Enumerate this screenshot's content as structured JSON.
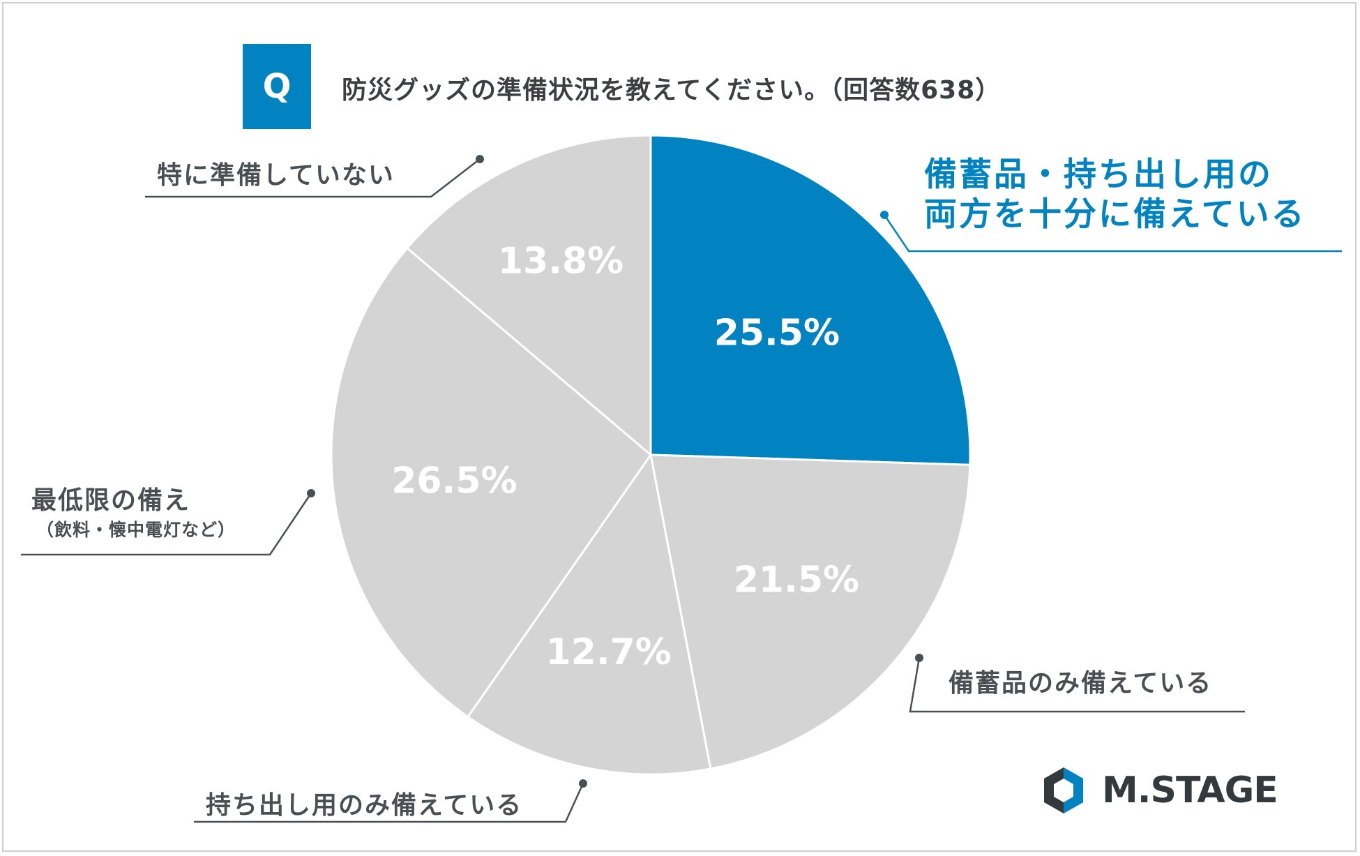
{
  "question": {
    "badge": "Q",
    "text": "防災グッズの準備状況を教えてください。（回答数638）"
  },
  "chart_data": {
    "type": "pie",
    "unit": "%",
    "slices": [
      {
        "label": "備蓄品・持ち出し用の両方を十分に備えている",
        "label_lines": [
          "備蓄品・持ち出し用の",
          "両方を十分に備えている"
        ],
        "value": 25.5,
        "value_text": "25.5%",
        "color": "#0083c0",
        "highlight": true
      },
      {
        "label": "備蓄品のみ備えている",
        "label_lines": [
          "備蓄品のみ備えている"
        ],
        "value": 21.5,
        "value_text": "21.5%",
        "color": "#d4d4d4",
        "highlight": false
      },
      {
        "label": "持ち出し用のみ備えている",
        "label_lines": [
          "持ち出し用のみ備えている"
        ],
        "value": 12.7,
        "value_text": "12.7%",
        "color": "#d4d4d4",
        "highlight": false
      },
      {
        "label": "最低限の備え（飲料・懐中電灯など）",
        "label_lines": [
          "最低限の備え",
          "（飲料・懐中電灯など）"
        ],
        "value": 26.5,
        "value_text": "26.5%",
        "color": "#d4d4d4",
        "highlight": false
      },
      {
        "label": "特に準備していない",
        "label_lines": [
          "特に準備していない"
        ],
        "value": 13.8,
        "value_text": "13.8%",
        "color": "#d4d4d4",
        "highlight": false
      }
    ]
  },
  "brand": {
    "logo_text": "M.STAGE",
    "dark": "#34393d",
    "accent": "#0083c0"
  }
}
